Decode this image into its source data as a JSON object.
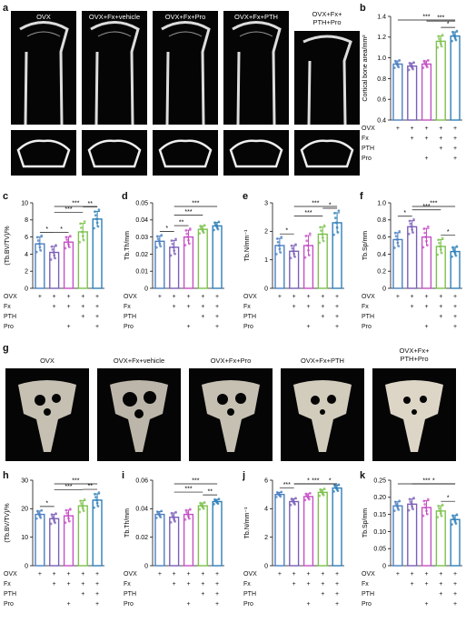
{
  "panel_letters": [
    "a",
    "b",
    "c",
    "d",
    "e",
    "f",
    "g",
    "h",
    "i",
    "j",
    "k"
  ],
  "micro_ct_top": {
    "titles": [
      "OVX",
      "OVX+Fx+vehicle",
      "OVX+Fx+Pro",
      "OVX+Fx+PTH",
      "OVX+Fx+\nPTH+Pro"
    ]
  },
  "micro_ct_bottom": {
    "titles": [
      "OVX",
      "OVX+Fx+vehicle",
      "OVX+Fx+Pro",
      "OVX+Fx+PTH",
      "OVX+Fx+\nPTH+Pro"
    ]
  },
  "group_table": {
    "rows": [
      "OVX",
      "Fx",
      "PTH",
      "Pro"
    ],
    "marks": [
      [
        "+",
        "+",
        "+",
        "+",
        "+"
      ],
      [
        "",
        "+",
        "+",
        "+",
        "+"
      ],
      [
        "",
        "",
        "",
        "+",
        "+"
      ],
      [
        "",
        "",
        "+",
        "",
        "+"
      ]
    ]
  },
  "colors": [
    "#4a7fc1",
    "#7b5fb8",
    "#c64fc6",
    "#7cc24d",
    "#2f7fb8"
  ],
  "chart_data": [
    {
      "panel": "b",
      "type": "bar",
      "ylabel": "Cortical bone area/mm²",
      "ylim": [
        0.4,
        1.4
      ],
      "yticks": [
        "0.4",
        "0.6",
        "0.8",
        "1.0",
        "1.2",
        "1.4"
      ],
      "tickvals": [
        0.4,
        0.6,
        0.8,
        1.0,
        1.2,
        1.4
      ],
      "values": [
        0.94,
        0.92,
        0.94,
        1.16,
        1.21
      ],
      "errors": [
        0.03,
        0.03,
        0.03,
        0.05,
        0.04
      ],
      "sig": [
        {
          "a": 0,
          "b": 4,
          "t": "***"
        },
        {
          "a": 2,
          "b": 4,
          "t": "***"
        },
        {
          "a": 3,
          "b": 4,
          "t": "*"
        }
      ]
    },
    {
      "panel": "c",
      "type": "bar",
      "ylabel": "(Tb.BV/TV)/%",
      "ylim": [
        0,
        10
      ],
      "yticks": [
        "0",
        "2",
        "4",
        "6",
        "8",
        "10"
      ],
      "tickvals": [
        0,
        2,
        4,
        6,
        8,
        10
      ],
      "values": [
        5.2,
        4.2,
        5.4,
        6.6,
        8.1
      ],
      "errors": [
        0.8,
        0.7,
        0.6,
        1.0,
        0.9
      ],
      "sig": [
        {
          "a": 0,
          "b": 1,
          "t": "*"
        },
        {
          "a": 1,
          "b": 2,
          "t": "*"
        },
        {
          "a": 1,
          "b": 3,
          "t": "***"
        },
        {
          "a": 1,
          "b": 4,
          "t": "***"
        },
        {
          "a": 3,
          "b": 4,
          "t": "**"
        }
      ]
    },
    {
      "panel": "d",
      "type": "bar",
      "ylabel": "Tb.Th/mm",
      "ylim": [
        0,
        0.05
      ],
      "yticks": [
        "0",
        "0.01",
        "0.02",
        "0.03",
        "0.04",
        "0.05"
      ],
      "tickvals": [
        0,
        0.01,
        0.02,
        0.03,
        0.04,
        0.05
      ],
      "values": [
        0.0275,
        0.024,
        0.03,
        0.0345,
        0.0365
      ],
      "errors": [
        0.003,
        0.004,
        0.004,
        0.002,
        0.002
      ],
      "sig": [
        {
          "a": 0,
          "b": 1,
          "t": "*"
        },
        {
          "a": 1,
          "b": 2,
          "t": "**"
        },
        {
          "a": 1,
          "b": 3,
          "t": "***"
        },
        {
          "a": 1,
          "b": 4,
          "t": "***"
        }
      ]
    },
    {
      "panel": "e",
      "type": "bar",
      "ylabel": "Tb.N/mm⁻¹",
      "ylim": [
        0,
        3
      ],
      "yticks": [
        "0",
        "1",
        "2",
        "3"
      ],
      "tickvals": [
        0,
        1,
        2,
        3
      ],
      "values": [
        1.5,
        1.3,
        1.5,
        1.9,
        2.3
      ],
      "errors": [
        0.25,
        0.2,
        0.35,
        0.25,
        0.35
      ],
      "sig": [
        {
          "a": 0,
          "b": 1,
          "t": "*"
        },
        {
          "a": 1,
          "b": 3,
          "t": "***"
        },
        {
          "a": 1,
          "b": 4,
          "t": "***"
        },
        {
          "a": 3,
          "b": 4,
          "t": "*"
        }
      ]
    },
    {
      "panel": "f",
      "type": "bar",
      "ylabel": "Tb.Sp/mm",
      "ylim": [
        0,
        1.0
      ],
      "yticks": [
        "0",
        "0.2",
        "0.4",
        "0.6",
        "0.8",
        "1.0"
      ],
      "tickvals": [
        0,
        0.2,
        0.4,
        0.6,
        0.8,
        1.0
      ],
      "values": [
        0.57,
        0.72,
        0.6,
        0.49,
        0.43
      ],
      "errors": [
        0.08,
        0.07,
        0.1,
        0.08,
        0.05
      ],
      "sig": [
        {
          "a": 0,
          "b": 1,
          "t": "*"
        },
        {
          "a": 1,
          "b": 3,
          "t": "***"
        },
        {
          "a": 1,
          "b": 4,
          "t": "***"
        },
        {
          "a": 3,
          "b": 4,
          "t": "*"
        }
      ]
    },
    {
      "panel": "h",
      "type": "bar",
      "ylabel": "(Tb.BV/TV)/%",
      "ylim": [
        0,
        30
      ],
      "yticks": [
        "0",
        "10",
        "20",
        "30"
      ],
      "tickvals": [
        0,
        10,
        20,
        30
      ],
      "values": [
        18,
        16.5,
        17.5,
        21,
        23
      ],
      "errors": [
        1.2,
        1.5,
        2.0,
        1.8,
        2.2
      ],
      "sig": [
        {
          "a": 0,
          "b": 1,
          "t": "*"
        },
        {
          "a": 1,
          "b": 3,
          "t": "***"
        },
        {
          "a": 1,
          "b": 4,
          "t": "***"
        },
        {
          "a": 3,
          "b": 4,
          "t": "**"
        }
      ]
    },
    {
      "panel": "i",
      "type": "bar",
      "ylabel": "Tb.Th/mm",
      "ylim": [
        0,
        0.06
      ],
      "yticks": [
        "0",
        "0.02",
        "0.04",
        "0.06"
      ],
      "tickvals": [
        0,
        0.02,
        0.04,
        0.06
      ],
      "values": [
        0.036,
        0.034,
        0.036,
        0.042,
        0.045
      ],
      "errors": [
        0.002,
        0.003,
        0.003,
        0.002,
        0.0015
      ],
      "sig": [
        {
          "a": 1,
          "b": 3,
          "t": "***"
        },
        {
          "a": 1,
          "b": 4,
          "t": "***"
        },
        {
          "a": 3,
          "b": 4,
          "t": "**"
        }
      ]
    },
    {
      "panel": "j",
      "type": "bar",
      "ylabel": "Tb.N/mm⁻¹",
      "ylim": [
        0,
        6
      ],
      "yticks": [
        "0",
        "2",
        "4",
        "6"
      ],
      "tickvals": [
        0,
        2,
        4,
        6
      ],
      "values": [
        5.0,
        4.5,
        4.85,
        5.15,
        5.45
      ],
      "errors": [
        0.15,
        0.2,
        0.2,
        0.2,
        0.2
      ],
      "sig": [
        {
          "a": 0,
          "b": 1,
          "t": "***"
        },
        {
          "a": 1,
          "b": 3,
          "t": "*"
        },
        {
          "a": 1,
          "b": 4,
          "t": "***"
        },
        {
          "a": 3,
          "b": 4,
          "t": "*"
        }
      ]
    },
    {
      "panel": "k",
      "type": "bar",
      "ylabel": "Tb.Sp/mm",
      "ylim": [
        0,
        0.25
      ],
      "yticks": [
        "0",
        "0.05",
        "0.10",
        "0.15",
        "0.20",
        "0.25"
      ],
      "tickvals": [
        0,
        0.05,
        0.1,
        0.15,
        0.2,
        0.25
      ],
      "values": [
        0.175,
        0.18,
        0.17,
        0.16,
        0.135
      ],
      "errors": [
        0.012,
        0.015,
        0.02,
        0.015,
        0.012
      ],
      "sig": [
        {
          "a": 0,
          "b": 4,
          "t": "***"
        },
        {
          "a": 1,
          "b": 4,
          "t": "*"
        },
        {
          "a": 3,
          "b": 4,
          "t": "*"
        }
      ]
    }
  ]
}
